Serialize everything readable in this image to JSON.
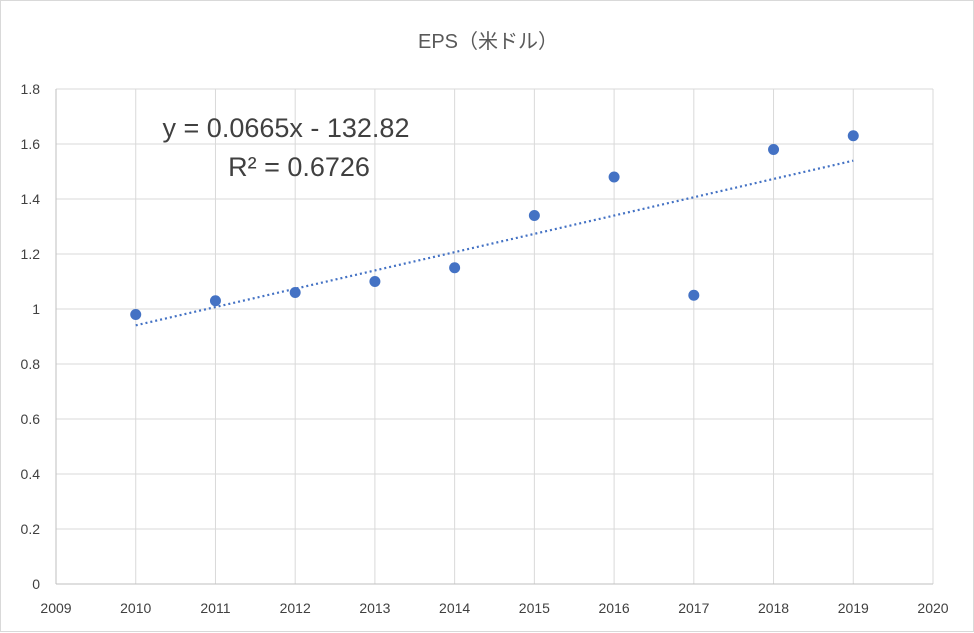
{
  "chart_data": {
    "type": "scatter",
    "title": "EPS（米ドル）",
    "xlabel": "",
    "ylabel": "",
    "xlim": [
      2009,
      2020
    ],
    "ylim": [
      0,
      1.8
    ],
    "x_ticks": [
      "2009",
      "2010",
      "2011",
      "2012",
      "2013",
      "2014",
      "2015",
      "2016",
      "2017",
      "2018",
      "2019",
      "2020"
    ],
    "y_ticks": [
      "0",
      "0.2",
      "0.4",
      "0.6",
      "0.8",
      "1",
      "1.2",
      "1.4",
      "1.6",
      "1.8"
    ],
    "grid": true,
    "series": [
      {
        "name": "EPS",
        "color": "#4472c4",
        "x": [
          2010,
          2011,
          2012,
          2013,
          2014,
          2015,
          2016,
          2017,
          2018,
          2019
        ],
        "y": [
          0.98,
          1.03,
          1.06,
          1.1,
          1.15,
          1.34,
          1.48,
          1.05,
          1.58,
          1.63
        ]
      }
    ],
    "trendline": {
      "type": "linear",
      "slope": 0.0665,
      "intercept": -132.82,
      "x_range": [
        2010,
        2019
      ],
      "equation_label": "y = 0.0665x - 132.82",
      "r2_label": "R² = 0.6726"
    }
  }
}
